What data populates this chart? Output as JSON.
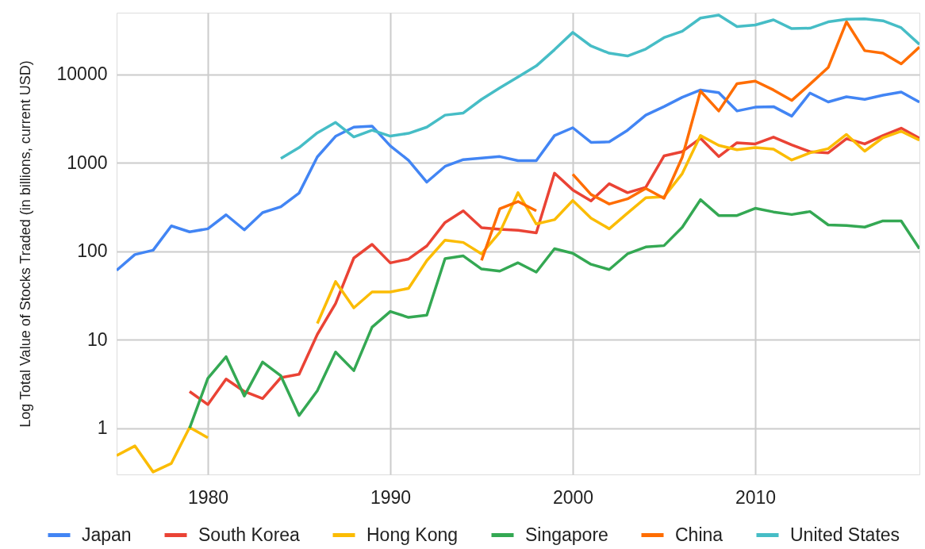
{
  "chart_data": {
    "type": "line",
    "ylabel": "Log Total Value of Stocks Traded (in billions, current USD)",
    "x": [
      1975,
      1976,
      1977,
      1978,
      1979,
      1980,
      1981,
      1982,
      1983,
      1984,
      1985,
      1986,
      1987,
      1988,
      1989,
      1990,
      1991,
      1992,
      1993,
      1994,
      1995,
      1996,
      1997,
      1998,
      1999,
      2000,
      2001,
      2002,
      2003,
      2004,
      2005,
      2006,
      2007,
      2008,
      2009,
      2010,
      2011,
      2012,
      2013,
      2014,
      2015,
      2016,
      2017,
      2018,
      2019
    ],
    "series": [
      {
        "name": "Japan",
        "color": "#4285f4",
        "values": [
          61,
          92,
          103,
          194,
          166,
          180,
          259,
          175,
          274,
          319,
          456,
          1170,
          2000,
          2540,
          2610,
          1560,
          1070,
          607,
          914,
          1090,
          1135,
          1180,
          1060,
          1060,
          2040,
          2500,
          1710,
          1730,
          2340,
          3470,
          4330,
          5520,
          6680,
          6250,
          3870,
          4270,
          4330,
          3380,
          6170,
          4890,
          5600,
          5230,
          5830,
          6330,
          4870
        ]
      },
      {
        "name": "South Korea",
        "color": "#ea4335",
        "values": [
          null,
          null,
          null,
          null,
          2.6,
          1.85,
          3.6,
          2.6,
          2.16,
          3.73,
          4.07,
          11.5,
          25.7,
          84,
          120,
          74,
          82,
          115,
          212,
          287,
          185,
          178,
          173,
          162,
          765,
          495,
          372,
          582,
          461,
          530,
          1200,
          1340,
          1900,
          1180,
          1690,
          1640,
          1960,
          1600,
          1340,
          1300,
          1880,
          1640,
          2040,
          2470,
          1900
        ]
      },
      {
        "name": "Hong Kong",
        "color": "#fbbc04",
        "values": [
          0.49,
          0.63,
          0.32,
          0.4,
          1.02,
          0.78,
          null,
          null,
          null,
          null,
          null,
          15.3,
          45.5,
          23,
          34.7,
          34.7,
          38.1,
          78.6,
          134,
          126,
          93.7,
          164,
          461,
          204,
          228,
          376,
          237,
          180,
          271,
          403,
          414,
          757,
          2040,
          1580,
          1410,
          1490,
          1430,
          1080,
          1300,
          1450,
          2100,
          1360,
          1930,
          2280,
          1810
        ]
      },
      {
        "name": "Singapore",
        "color": "#34a853",
        "values": [
          null,
          null,
          null,
          null,
          1.0,
          3.66,
          6.43,
          2.31,
          5.6,
          3.91,
          1.39,
          2.65,
          7.27,
          4.48,
          13.9,
          20.9,
          17.9,
          19.0,
          82.8,
          88.8,
          63.1,
          59.7,
          74.3,
          58.2,
          107,
          95,
          71.3,
          62.2,
          93.7,
          112,
          116,
          187,
          384,
          254,
          254,
          307,
          279,
          261,
          282,
          199,
          196,
          188,
          221,
          221,
          107
        ]
      },
      {
        "name": "China",
        "color": "#ff6d01",
        "values": [
          null,
          null,
          null,
          null,
          null,
          null,
          null,
          null,
          null,
          null,
          null,
          null,
          null,
          null,
          null,
          null,
          null,
          null,
          null,
          null,
          79,
          303,
          366,
          287,
          null,
          745,
          440,
          343,
          392,
          515,
          398,
          1160,
          6500,
          3870,
          7870,
          8420,
          6680,
          5090,
          7760,
          12000,
          39400,
          18600,
          17400,
          13200,
          20400
        ]
      },
      {
        "name": "United States",
        "color": "#46bdc6",
        "values": [
          null,
          null,
          null,
          null,
          null,
          null,
          null,
          null,
          null,
          1120,
          1490,
          2190,
          2870,
          1970,
          2340,
          2010,
          2160,
          2540,
          3470,
          3670,
          5230,
          7060,
          9400,
          12500,
          19100,
          29900,
          21000,
          17400,
          16200,
          19400,
          26100,
          30800,
          43500,
          46900,
          34800,
          36300,
          41500,
          33000,
          33400,
          39400,
          42100,
          42700,
          40500,
          33800,
          21900
        ]
      }
    ],
    "xlim": [
      1975,
      2019
    ],
    "xticks": [
      1980,
      1990,
      2000,
      2010
    ],
    "ylim": [
      0.3,
      50000
    ],
    "yticks": [
      1,
      10,
      100,
      1000,
      10000
    ],
    "log": true,
    "grid": true,
    "legend": "bottom"
  }
}
